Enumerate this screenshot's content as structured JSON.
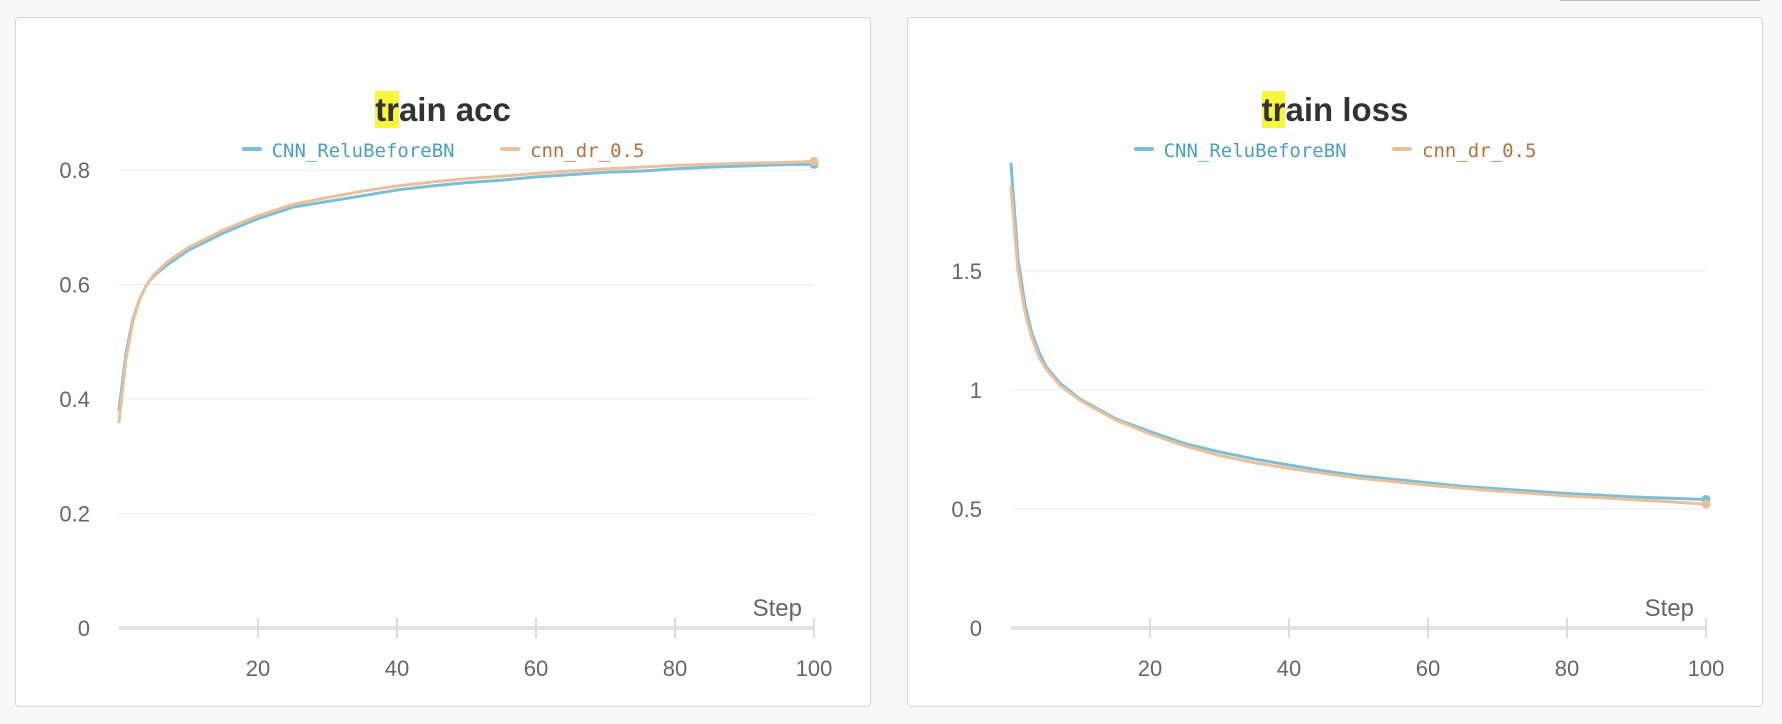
{
  "chart_data": [
    {
      "type": "line",
      "title": "train acc",
      "title_highlight": "tr",
      "title_rest": "ain acc",
      "xlabel": "Step",
      "ylabel": "",
      "xlim": [
        0,
        100
      ],
      "ylim": [
        0,
        0.9
      ],
      "xticks": [
        20,
        40,
        60,
        80,
        100
      ],
      "yticks": [
        0,
        0.2,
        0.4,
        0.6,
        0.8
      ],
      "grid": true,
      "legend_position": "top-center",
      "series": [
        {
          "name": "CNN_ReluBeforeBN",
          "color": "#7bbfd4",
          "label_color": "#4c9fbc",
          "x": [
            0,
            1,
            2,
            3,
            4,
            5,
            7,
            10,
            15,
            20,
            25,
            30,
            35,
            40,
            45,
            50,
            55,
            60,
            65,
            70,
            75,
            80,
            85,
            90,
            95,
            100
          ],
          "values": [
            0.38,
            0.48,
            0.54,
            0.575,
            0.6,
            0.615,
            0.635,
            0.66,
            0.69,
            0.715,
            0.735,
            0.745,
            0.755,
            0.765,
            0.772,
            0.778,
            0.782,
            0.788,
            0.792,
            0.796,
            0.798,
            0.802,
            0.805,
            0.807,
            0.809,
            0.81
          ]
        },
        {
          "name": "cnn_dr_0.5",
          "color": "#e9c09d",
          "label_color": "#b86f3e",
          "x": [
            0,
            1,
            2,
            3,
            4,
            5,
            7,
            10,
            15,
            20,
            25,
            30,
            35,
            40,
            45,
            50,
            55,
            60,
            65,
            70,
            75,
            80,
            85,
            90,
            95,
            100
          ],
          "values": [
            0.36,
            0.47,
            0.535,
            0.575,
            0.6,
            0.617,
            0.64,
            0.665,
            0.695,
            0.72,
            0.74,
            0.752,
            0.763,
            0.772,
            0.779,
            0.785,
            0.789,
            0.794,
            0.798,
            0.802,
            0.805,
            0.808,
            0.81,
            0.812,
            0.813,
            0.815
          ]
        }
      ]
    },
    {
      "type": "line",
      "title": "train loss",
      "title_highlight": "tr",
      "title_rest": "ain loss",
      "xlabel": "Step",
      "ylabel": "",
      "xlim": [
        0,
        100
      ],
      "ylim": [
        0,
        1.95
      ],
      "xticks": [
        20,
        40,
        60,
        80,
        100
      ],
      "yticks": [
        0,
        0.5,
        1,
        1.5
      ],
      "ytick_labels": [
        "0",
        "0.5",
        "1",
        "1.5"
      ],
      "grid": true,
      "legend_position": "top-center",
      "series": [
        {
          "name": "CNN_ReluBeforeBN",
          "color": "#7bbfd4",
          "label_color": "#4c9fbc",
          "x": [
            0,
            1,
            2,
            3,
            4,
            5,
            7,
            10,
            15,
            20,
            25,
            30,
            35,
            40,
            45,
            50,
            55,
            60,
            65,
            70,
            75,
            80,
            85,
            90,
            95,
            100
          ],
          "values": [
            1.95,
            1.55,
            1.36,
            1.24,
            1.16,
            1.1,
            1.03,
            0.96,
            0.88,
            0.825,
            0.775,
            0.74,
            0.71,
            0.685,
            0.66,
            0.64,
            0.625,
            0.61,
            0.595,
            0.585,
            0.575,
            0.565,
            0.558,
            0.55,
            0.545,
            0.54
          ]
        },
        {
          "name": "cnn_dr_0.5",
          "color": "#e9c09d",
          "label_color": "#b86f3e",
          "x": [
            0,
            1,
            2,
            3,
            4,
            5,
            7,
            10,
            15,
            20,
            25,
            30,
            35,
            40,
            45,
            50,
            55,
            60,
            65,
            70,
            75,
            80,
            85,
            90,
            95,
            100
          ],
          "values": [
            1.85,
            1.5,
            1.33,
            1.22,
            1.14,
            1.09,
            1.02,
            0.955,
            0.875,
            0.815,
            0.765,
            0.725,
            0.695,
            0.67,
            0.65,
            0.63,
            0.615,
            0.6,
            0.587,
            0.575,
            0.565,
            0.555,
            0.547,
            0.538,
            0.53,
            0.52
          ]
        }
      ]
    }
  ]
}
